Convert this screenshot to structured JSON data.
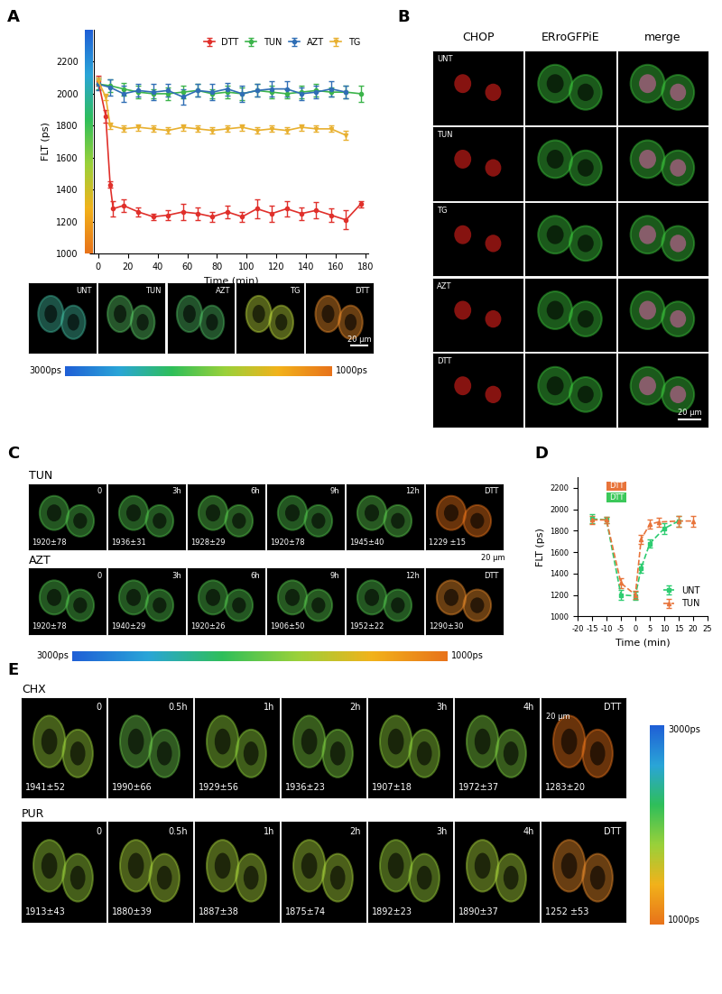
{
  "panel_labels": [
    "A",
    "B",
    "C",
    "D",
    "E"
  ],
  "chart_data": [
    {
      "type": "line",
      "x_label": "Time (min)",
      "y_label": "FLT (ps)",
      "xlim": [
        -3,
        182
      ],
      "ylim": [
        1000,
        2400
      ],
      "xticks": [
        0,
        20,
        40,
        60,
        80,
        100,
        120,
        140,
        160,
        180
      ],
      "yticks": [
        1000,
        1200,
        1400,
        1600,
        1800,
        2000,
        2200
      ],
      "legend": "upper right",
      "series": [
        {
          "name": "DTT",
          "color": "#e0302b",
          "marker": "o",
          "line_style": "solid",
          "x": [
            0,
            5,
            8,
            10,
            17,
            27,
            37,
            47,
            57,
            67,
            77,
            87,
            97,
            107,
            117,
            127,
            137,
            147,
            157,
            167,
            177
          ],
          "values": [
            2080,
            1860,
            1430,
            1280,
            1300,
            1260,
            1230,
            1240,
            1260,
            1250,
            1230,
            1260,
            1230,
            1280,
            1250,
            1280,
            1250,
            1270,
            1240,
            1210,
            1310
          ],
          "errors": [
            30,
            40,
            20,
            50,
            40,
            30,
            20,
            30,
            50,
            40,
            30,
            40,
            30,
            60,
            50,
            50,
            40,
            50,
            40,
            60,
            20
          ]
        },
        {
          "name": "TUN",
          "color": "#3cb44b",
          "marker": "o",
          "line_style": "solid",
          "x": [
            0,
            8,
            17,
            27,
            37,
            47,
            57,
            67,
            77,
            87,
            97,
            107,
            117,
            127,
            137,
            147,
            157,
            167,
            177
          ],
          "values": [
            2060,
            2050,
            2030,
            2010,
            2000,
            2000,
            2010,
            2020,
            2000,
            2010,
            2000,
            2020,
            2010,
            2000,
            2010,
            2020,
            2010,
            2010,
            2000
          ],
          "errors": [
            30,
            40,
            40,
            40,
            30,
            40,
            40,
            40,
            30,
            40,
            40,
            40,
            40,
            30,
            40,
            40,
            30,
            40,
            50
          ]
        },
        {
          "name": "AZT",
          "color": "#2f6eb5",
          "marker": "o",
          "line_style": "solid",
          "x": [
            0,
            8,
            17,
            27,
            37,
            47,
            57,
            67,
            77,
            87,
            97,
            107,
            117,
            127,
            137,
            147,
            157,
            167
          ],
          "values": [
            2060,
            2040,
            2000,
            2020,
            2010,
            2020,
            1980,
            2020,
            2010,
            2030,
            2000,
            2020,
            2030,
            2030,
            2000,
            2010,
            2030,
            2010
          ],
          "errors": [
            40,
            50,
            50,
            40,
            50,
            40,
            50,
            40,
            50,
            40,
            50,
            40,
            50,
            50,
            40,
            40,
            50,
            40
          ]
        },
        {
          "name": "TG",
          "color": "#e8b030",
          "marker": "v",
          "line_style": "solid",
          "x": [
            0,
            5,
            8,
            17,
            27,
            37,
            47,
            57,
            67,
            77,
            87,
            97,
            107,
            117,
            127,
            137,
            147,
            157,
            167
          ],
          "values": [
            2080,
            1980,
            1800,
            1780,
            1790,
            1780,
            1770,
            1790,
            1780,
            1770,
            1780,
            1790,
            1770,
            1780,
            1770,
            1790,
            1780,
            1780,
            1740
          ],
          "errors": [
            20,
            20,
            20,
            20,
            20,
            20,
            20,
            20,
            20,
            20,
            20,
            20,
            20,
            20,
            20,
            20,
            20,
            20,
            30
          ]
        }
      ]
    },
    {
      "type": "line",
      "x_label": "Time (min)",
      "y_label": "FLT (ps)",
      "xlim": [
        -20,
        25
      ],
      "ylim": [
        1000,
        2300
      ],
      "xticks": [
        -20,
        -15,
        -10,
        -5,
        0,
        5,
        10,
        15,
        20,
        25
      ],
      "yticks": [
        1000,
        1200,
        1400,
        1600,
        1800,
        2000,
        2200
      ],
      "legend": "lower right",
      "annotations": [
        {
          "text": "DTT",
          "color": "#e8743b",
          "x": [
            -10,
            -3
          ]
        },
        {
          "text": "DTT",
          "color": "#3cc85a",
          "x": [
            -10,
            -3
          ]
        }
      ],
      "series": [
        {
          "name": "UNT",
          "color": "#2ecc71",
          "marker": "s",
          "line_style": "dashed",
          "x": [
            -15,
            -10,
            -5,
            0,
            2,
            5,
            10,
            15
          ],
          "values": [
            1910,
            1900,
            1200,
            1190,
            1450,
            1680,
            1820,
            1890
          ],
          "errors": [
            40,
            30,
            50,
            40,
            40,
            40,
            50,
            50
          ]
        },
        {
          "name": "TUN",
          "color": "#e8743b",
          "marker": "^",
          "line_style": "dashed",
          "x": [
            -15,
            -10,
            -5,
            0,
            2,
            5,
            8,
            15,
            20
          ],
          "values": [
            1900,
            1900,
            1310,
            1200,
            1720,
            1860,
            1880,
            1890,
            1890
          ],
          "errors": [
            40,
            30,
            50,
            40,
            40,
            40,
            40,
            50,
            50
          ]
        }
      ]
    }
  ],
  "panel_A_images": {
    "labels": [
      "UNT",
      "TUN",
      "AZT",
      "TG",
      "DTT"
    ],
    "colors": [
      "#3fb59a",
      "#55c060",
      "#4cb860",
      "#b8d43a",
      "#e88a2a"
    ],
    "scale_bar": "20 μm",
    "colorbar_labels": [
      "3000ps",
      "1000ps"
    ]
  },
  "panel_B": {
    "columns": [
      "CHOP",
      "ERroGFPiE",
      "merge"
    ],
    "colors": [
      "#e0201b",
      "#3cc63c",
      "#d060a0"
    ],
    "rows": [
      "UNT",
      "TUN",
      "TG",
      "AZT",
      "DTT"
    ],
    "scale_bar": "20 μm"
  },
  "panel_C": {
    "rows": [
      {
        "label": "TUN",
        "times": [
          "0",
          "3h",
          "6h",
          "9h",
          "12h",
          "DTT"
        ],
        "flt": [
          "1920±78",
          "1936±31",
          "1928±29",
          "1920±78",
          "1945±40",
          "1229 ±15"
        ],
        "colors": [
          "#4fc04a",
          "#4fc04a",
          "#55c44a",
          "#4fc04a",
          "#58c44a",
          "#e8731a"
        ]
      },
      {
        "label": "AZT",
        "times": [
          "0",
          "3h",
          "6h",
          "9h",
          "12h",
          "DTT"
        ],
        "flt": [
          "1920±78",
          "1940±29",
          "1920±26",
          "1906±50",
          "1952±22",
          "1290±30"
        ],
        "colors": [
          "#4fc04a",
          "#4fc04a",
          "#4fc04a",
          "#55c44a",
          "#4fc04a",
          "#e88a2a"
        ]
      }
    ],
    "scale_bar": "20 μm",
    "colorbar_labels": [
      "3000ps",
      "1000ps"
    ]
  },
  "panel_E": {
    "rows": [
      {
        "label": "CHX",
        "times": [
          "0",
          "0.5h",
          "1h",
          "2h",
          "3h",
          "4h",
          "DTT"
        ],
        "flt": [
          "1941±52",
          "1990±66",
          "1929±56",
          "1936±23",
          "1907±18",
          "1972±37",
          "1283±20"
        ],
        "colors": [
          "#9ad13a",
          "#6cc84a",
          "#8ccf3a",
          "#7ccc40",
          "#8ccf3a",
          "#7ccc40",
          "#e8731a"
        ]
      },
      {
        "label": "PUR",
        "times": [
          "0",
          "0.5h",
          "1h",
          "2h",
          "3h",
          "4h",
          "DTT"
        ],
        "flt": [
          "1913±43",
          "1880±39",
          "1887±38",
          "1875±74",
          "1892±23",
          "1890±37",
          "1252 ±53"
        ],
        "colors": [
          "#9ad13a",
          "#a8d43a",
          "#a8d43a",
          "#a8d43a",
          "#9ad13a",
          "#a8d43a",
          "#e88a2a"
        ]
      }
    ],
    "scale_bar": "20 μm",
    "colorbar_labels": [
      "3000ps",
      "1000ps"
    ]
  }
}
